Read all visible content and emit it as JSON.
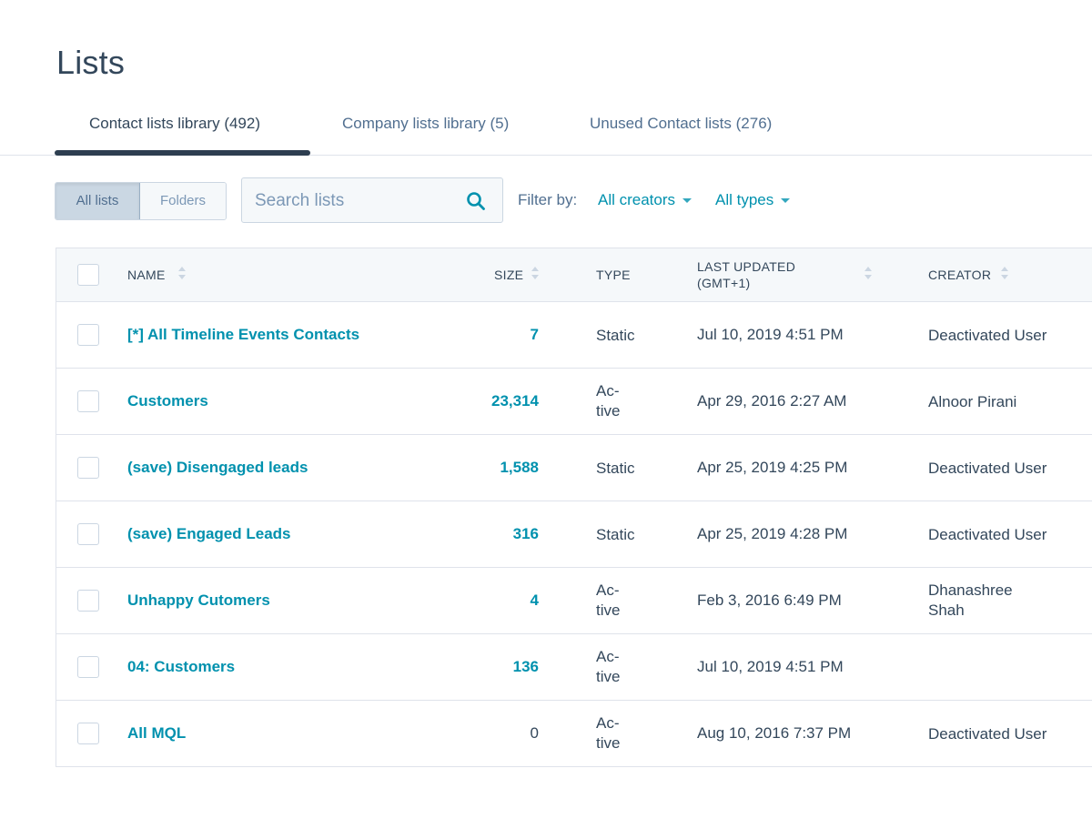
{
  "page": {
    "title": "Lists"
  },
  "tabs": [
    {
      "label": "Contact lists library (492)",
      "active": true
    },
    {
      "label": "Company lists library (5)",
      "active": false
    },
    {
      "label": "Unused Contact lists (276)",
      "active": false
    }
  ],
  "toolbar": {
    "view_toggle": {
      "all_lists": "All lists",
      "folders": "Folders"
    },
    "search": {
      "placeholder": "Search lists",
      "icon": "search-icon"
    },
    "filter_label": "Filter by:",
    "creators_filter": "All creators",
    "types_filter": "All types"
  },
  "table": {
    "headers": {
      "name": "NAME",
      "size": "SIZE",
      "type": "TYPE",
      "last_updated_line1": "LAST UPDATED",
      "last_updated_line2": "(GMT+1)",
      "creator": "CREATOR"
    },
    "rows": [
      {
        "name": "[*] All Timeline Events Contacts",
        "size": "7",
        "type": "Static",
        "updated": "Jul 10, 2019 4:51 PM",
        "creator": "Deactivated User"
      },
      {
        "name": "Customers",
        "size": "23,314",
        "type": "Ac-\ntive",
        "updated": "Apr 29, 2016 2:27 AM",
        "creator": "Alnoor Pirani"
      },
      {
        "name": "(save) Disengaged leads",
        "size": "1,588",
        "type": "Static",
        "updated": "Apr 25, 2019 4:25 PM",
        "creator": "Deactivated User"
      },
      {
        "name": "(save) Engaged Leads",
        "size": "316",
        "type": "Static",
        "updated": "Apr 25, 2019 4:28 PM",
        "creator": "Deactivated User"
      },
      {
        "name": "Unhappy Cutomers",
        "size": "4",
        "type": "Ac-\ntive",
        "updated": "Feb 3, 2016 6:49 PM",
        "creator": "Dhanashree\nShah"
      },
      {
        "name": "04: Customers",
        "size": "136",
        "type": "Ac-\ntive",
        "updated": "Jul 10, 2019 4:51 PM",
        "creator": ""
      },
      {
        "name": "All MQL",
        "size": "0",
        "type": "Ac-\ntive",
        "updated": "Aug 10, 2016 7:37 PM",
        "creator": "Deactivated User"
      }
    ]
  },
  "colors": {
    "link": "#0091ae",
    "text": "#33475b",
    "border": "#dfe3eb"
  }
}
